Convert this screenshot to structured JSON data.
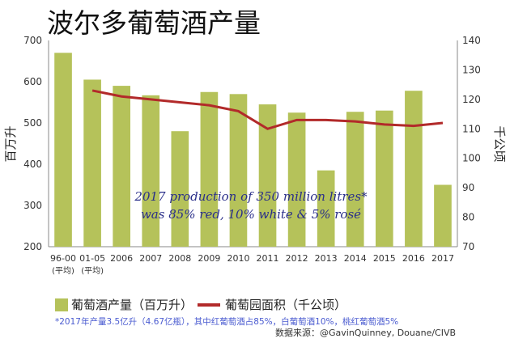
{
  "title": "波尔多葡萄酒产量",
  "chart_data": {
    "type": "bar+line",
    "title": "波尔多葡萄酒产量",
    "categories": [
      "96-00\n(平均)",
      "01-05\n(平均)",
      "2006",
      "2007",
      "2008",
      "2009",
      "2010",
      "2011",
      "2012",
      "2013",
      "2014",
      "2015",
      "2016",
      "2017"
    ],
    "ylabel": "百万升",
    "ylim": [
      200,
      700
    ],
    "yticks": [
      200,
      300,
      400,
      500,
      600,
      700
    ],
    "y2label": "千公顷",
    "y2lim": [
      70,
      140
    ],
    "y2ticks": [
      70,
      80,
      90,
      100,
      110,
      120,
      130,
      140
    ],
    "series": [
      {
        "name": "葡萄酒产量（百万升）",
        "type": "bar",
        "axis": "left",
        "color": "#b5c25a",
        "values": [
          670,
          605,
          590,
          567,
          480,
          575,
          570,
          545,
          525,
          385,
          527,
          530,
          578,
          350
        ]
      },
      {
        "name": "葡萄园面积（千公顷）",
        "type": "line",
        "axis": "right",
        "color": "#b22a2a",
        "values": [
          null,
          123,
          121,
          120,
          119,
          118,
          116,
          110,
          113,
          113,
          112.5,
          111.5,
          111,
          112
        ]
      }
    ],
    "annotation": [
      "2017 production of 350 million litres*",
      "was 85% red, 10% white & 5% rosé"
    ]
  },
  "note": "*2017年产量3.5亿升（4.67亿瓶），其中红葡萄酒占85%，白葡萄酒10%，桃红葡萄酒5%",
  "source": "数据来源：@GavinQuinney, Douane/CIVB"
}
